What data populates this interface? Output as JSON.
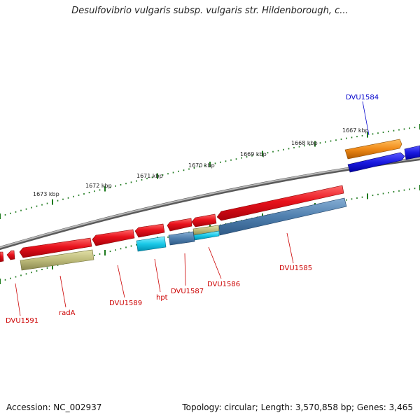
{
  "title": "Desulfovibrio vulgaris subsp. vulgaris str. Hildenborough, c...",
  "footer": {
    "accession": "Accession: NC_002937",
    "topology": "Topology: circular; Length: 3,570,858 bp; Genes: 3,465"
  },
  "colors": {
    "backbone": "#8a8a8a",
    "tick": "#1d7a1d",
    "gene_red": "#e8121c",
    "gene_orange": "#f08a18",
    "gene_blue": "#1a1ae0",
    "gene_steelblue": "#4f7fae",
    "gene_cyan": "#19c8e8",
    "gene_khaki": "#bdbb7a",
    "label_red": "#cc0000",
    "label_blue": "#0000cc"
  },
  "map": {
    "kbp_labels": [
      "1667 kbp",
      "1668 kbp",
      "1669 kbp",
      "1670 kbp",
      "1671 kbp",
      "1672 kbp",
      "1673 kbp"
    ],
    "gene_labels": [
      {
        "text": "DVU1584",
        "color": "blue"
      },
      {
        "text": "DVU1585",
        "color": "red"
      },
      {
        "text": "DVU1586",
        "color": "red"
      },
      {
        "text": "DVU1587",
        "color": "red"
      },
      {
        "text": "hpt",
        "color": "red"
      },
      {
        "text": "DVU1589",
        "color": "red"
      },
      {
        "text": "radA",
        "color": "red"
      },
      {
        "text": "DVU1591",
        "color": "red"
      }
    ]
  }
}
